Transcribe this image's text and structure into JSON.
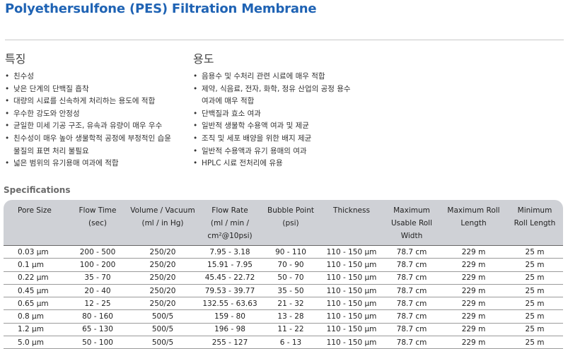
{
  "title": "Polyethersulfone (PES) Filtration Membrane",
  "features": {
    "heading": "특징",
    "items": [
      {
        "text": "친수성",
        "bullet": true
      },
      {
        "text": "낮은 단계의 단백질 흡착",
        "bullet": true
      },
      {
        "text": "대량의 시료를 신속하게 처리하는 용도에 적합",
        "bullet": true
      },
      {
        "text": "우수한 강도와 안정성",
        "bullet": true
      },
      {
        "text": "균일한 미세 기공 구조, 유속과 유량이 매우 우수",
        "bullet": true
      },
      {
        "text": "친수성이 매우 높아 생물학적 공정에 부정적인 습윤",
        "bullet": true
      },
      {
        "text": "물질의 표면 처리 불필요",
        "bullet": false
      },
      {
        "text": "넓은 범위의 유기용매 여과에 적합",
        "bullet": true
      }
    ]
  },
  "applications": {
    "heading": "용도",
    "items": [
      {
        "text": "음용수 및 수처리 관련 시료에 매우 적합",
        "bullet": true
      },
      {
        "text": "제약, 식음료, 전자, 화학, 정유 산업의 공정 용수",
        "bullet": true
      },
      {
        "text": "여과에 매우 적합",
        "bullet": false
      },
      {
        "text": "단백질과 효소 여과",
        "bullet": true
      },
      {
        "text": "일반적 생물학 수용액 여과 및 제균",
        "bullet": true
      },
      {
        "text": "조직 및 세포 배양을 위한 배지 제균",
        "bullet": true
      },
      {
        "text": "일반적 수용액과 유기 용매의 여과",
        "bullet": true
      },
      {
        "text": "HPLC 시료 전처리에 유용",
        "bullet": true
      }
    ]
  },
  "specifications": {
    "heading": "Specifications",
    "columns": [
      [
        "Pore Size"
      ],
      [
        "Flow Time",
        "(sec)"
      ],
      [
        "Volume / Vacuum",
        "(ml / in Hg)"
      ],
      [
        "Flow Rate",
        "(ml / min /",
        "cm²@10psi)"
      ],
      [
        "Bubble Point",
        "(psi)"
      ],
      [
        "Thickness"
      ],
      [
        "Maximum",
        "Usable Roll",
        "Width"
      ],
      [
        "Maximum Roll",
        "Length"
      ],
      [
        "Minimum",
        "Roll Length"
      ]
    ],
    "rows": [
      [
        "0.03 µm",
        "200 - 500",
        "250/20",
        "7.95 - 3.18",
        "90 - 110",
        "110 - 150 µm",
        "78.7 cm",
        "229 m",
        "25 m"
      ],
      [
        "0.1 µm",
        "100 - 200",
        "250/20",
        "15.91 - 7.95",
        "70 - 90",
        "110 - 150 µm",
        "78.7 cm",
        "229 m",
        "25 m"
      ],
      [
        "0.22 µm",
        "35 - 70",
        "250/20",
        "45.45 - 22.72",
        "50 - 70",
        "110 - 150 µm",
        "78.7 cm",
        "229 m",
        "25 m"
      ],
      [
        "0.45 µm",
        "20 - 40",
        "250/20",
        "79.53 - 39.77",
        "35 - 50",
        "110 - 150 µm",
        "78.7 cm",
        "229 m",
        "25 m"
      ],
      [
        "0.65 µm",
        "12 - 25",
        "250/20",
        "132.55 - 63.63",
        "21 - 32",
        "110 - 150 µm",
        "78.7 cm",
        "229 m",
        "25 m"
      ],
      [
        "0.8 µm",
        "80 - 160",
        "500/5",
        "159 - 80",
        "13 - 28",
        "110 - 150 µm",
        "78.7 cm",
        "229 m",
        "25 m"
      ],
      [
        "1.2 µm",
        "65 - 130",
        "500/5",
        "196 - 98",
        "11 - 22",
        "110 - 150 µm",
        "78.7 cm",
        "229 m",
        "25 m"
      ],
      [
        "5.0 µm",
        "50 - 100",
        "500/5",
        "255 - 127",
        "6 - 13",
        "110 - 150 µm",
        "78.7 cm",
        "229 m",
        "25 m"
      ]
    ]
  }
}
